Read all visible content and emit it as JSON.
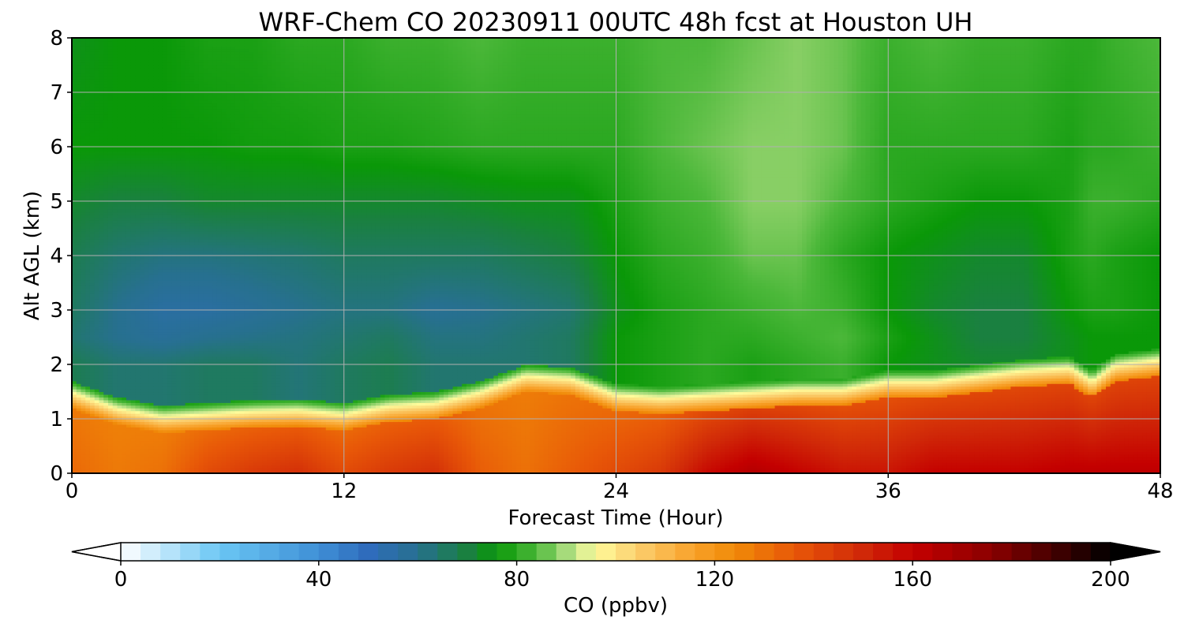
{
  "chart_data": {
    "type": "heatmap",
    "title": "WRF-Chem CO  20230911 00UTC 48h fcst at Houston UH",
    "xlabel": "Forecast Time (Hour)",
    "ylabel": "Alt AGL (km)",
    "xlim": [
      0,
      48
    ],
    "ylim": [
      0,
      8
    ],
    "xticks": [
      0,
      12,
      24,
      36,
      48
    ],
    "yticks": [
      0,
      1,
      2,
      3,
      4,
      5,
      6,
      7,
      8
    ],
    "grid": true,
    "colorbar": {
      "label": "CO  (ppbv)",
      "min": 0,
      "max": 200,
      "ticks": [
        0,
        40,
        80,
        120,
        160,
        200
      ],
      "extend": "both",
      "orientation": "horizontal",
      "placement": "bottom",
      "colors": {
        "0": "#ffffff",
        "20": "#6ac6f4",
        "40": "#3f8fd6",
        "50": "#2f6cbc",
        "60": "#27708f",
        "70": "#1a8040",
        "76": "#0a9808",
        "84": "#4cb83a",
        "92": "#c4e690",
        "96": "#fffb9a",
        "104": "#fbd070",
        "116": "#f8a028",
        "124": "#f08a08",
        "136": "#e85808",
        "150": "#d02808",
        "160": "#c40000",
        "176": "#8a0000",
        "192": "#300000",
        "200": "#000000"
      }
    },
    "times": [
      0,
      2,
      4,
      6,
      8,
      10,
      12,
      14,
      16,
      18,
      20,
      22,
      24,
      26,
      28,
      30,
      32,
      34,
      36,
      38,
      40,
      42,
      44,
      45,
      46,
      48
    ],
    "boundary_layer_top_km": [
      1.55,
      1.25,
      1.1,
      1.15,
      1.2,
      1.22,
      1.15,
      1.3,
      1.35,
      1.55,
      1.85,
      1.8,
      1.5,
      1.45,
      1.5,
      1.55,
      1.6,
      1.6,
      1.75,
      1.75,
      1.85,
      1.95,
      2.0,
      1.75,
      2.05,
      2.15
    ],
    "levels_km": [
      0.0,
      0.3,
      0.7,
      1.0,
      1.3,
      1.7,
      2.0,
      2.5,
      3.0,
      3.5,
      4.0,
      5.0,
      6.0,
      7.0,
      8.0
    ],
    "surface_co_ppbv": [
      132,
      128,
      130,
      140,
      145,
      148,
      140,
      145,
      148,
      135,
      130,
      135,
      140,
      145,
      158,
      165,
      160,
      155,
      155,
      160,
      160,
      160,
      162,
      162,
      162,
      162
    ],
    "upper_co_ppbv": [
      [
        68,
        64,
        64,
        66,
        66,
        63,
        66,
        68,
        64,
        64,
        64,
        66,
        76,
        78,
        80,
        78,
        80,
        82,
        76,
        74,
        72,
        72,
        74,
        76,
        76,
        76
      ],
      [
        64,
        60,
        58,
        60,
        61,
        62,
        64,
        66,
        62,
        62,
        64,
        66,
        76,
        78,
        80,
        80,
        82,
        84,
        78,
        74,
        70,
        70,
        74,
        76,
        76,
        76
      ],
      [
        66,
        60,
        56,
        56,
        58,
        60,
        62,
        62,
        59,
        60,
        62,
        64,
        74,
        78,
        80,
        82,
        84,
        82,
        76,
        72,
        70,
        70,
        76,
        78,
        78,
        76
      ],
      [
        68,
        64,
        62,
        62,
        63,
        64,
        66,
        66,
        66,
        66,
        68,
        70,
        76,
        80,
        82,
        86,
        86,
        80,
        76,
        74,
        72,
        72,
        78,
        80,
        78,
        76
      ],
      [
        72,
        70,
        70,
        72,
        72,
        72,
        72,
        72,
        72,
        73,
        74,
        74,
        78,
        82,
        84,
        88,
        88,
        84,
        80,
        78,
        76,
        76,
        78,
        82,
        82,
        80
      ],
      [
        76,
        76,
        76,
        76,
        77,
        77,
        78,
        78,
        79,
        80,
        80,
        80,
        80,
        84,
        86,
        88,
        88,
        86,
        80,
        80,
        80,
        80,
        78,
        80,
        80,
        82
      ],
      [
        74,
        76,
        76,
        78,
        78,
        80,
        80,
        82,
        82,
        84,
        82,
        82,
        82,
        84,
        84,
        86,
        88,
        86,
        82,
        84,
        82,
        82,
        80,
        80,
        82,
        84
      ]
    ]
  }
}
